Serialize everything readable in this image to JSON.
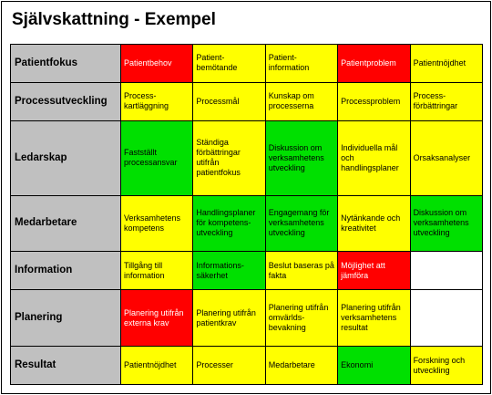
{
  "title": "Självskattning - Exempel",
  "rows": [
    {
      "label": "Patientfokus",
      "cells": [
        {
          "text": "Patientbehov",
          "color": "#ff0000"
        },
        {
          "text": "Patient-\nbemötande",
          "color": "#ffff00"
        },
        {
          "text": "Patient-\ninformation",
          "color": "#ffff00"
        },
        {
          "text": "Patientproblem",
          "color": "#ff0000"
        },
        {
          "text": "Patientnöjdhet",
          "color": "#ffff00"
        }
      ]
    },
    {
      "label": "Processutveckling",
      "cells": [
        {
          "text": "Process-\nkartläggning",
          "color": "#ffff00"
        },
        {
          "text": "Processmål",
          "color": "#ffff00"
        },
        {
          "text": "Kunskap om\nprocesserna",
          "color": "#ffff00"
        },
        {
          "text": "Processproblem",
          "color": "#ffff00"
        },
        {
          "text": "Process-\nförbättringar",
          "color": "#ffff00"
        }
      ]
    },
    {
      "label": "Ledarskap",
      "cells": [
        {
          "text": "Fastställt\nprocessansvar",
          "color": "#00e000"
        },
        {
          "text": "Ständiga\nförbättringar\nutifrån\npatientfokus",
          "color": "#ffff00"
        },
        {
          "text": "Diskussion om\nverksamhetens\nutveckling",
          "color": "#00e000"
        },
        {
          "text": "Individuella mål\noch\nhandlingsplaner",
          "color": "#ffff00"
        },
        {
          "text": "Orsaksanalyser",
          "color": "#ffff00"
        }
      ]
    },
    {
      "label": "Medarbetare",
      "cells": [
        {
          "text": "Verksamhetens\nkompetens",
          "color": "#ffff00"
        },
        {
          "text": "Handlingsplaner\nför kompetens-\nutveckling",
          "color": "#00e000"
        },
        {
          "text": "Engagemang för\nverksamhetens\nutveckling",
          "color": "#00e000"
        },
        {
          "text": "Nytänkande och\nkreativitet",
          "color": "#ffff00"
        },
        {
          "text": "Diskussion om\nverksamhetens\nutveckling",
          "color": "#00e000"
        }
      ]
    },
    {
      "label": "Information",
      "cells": [
        {
          "text": "Tillgång till\ninformation",
          "color": "#ffff00"
        },
        {
          "text": "Informations-\nsäkerhet",
          "color": "#00e000"
        },
        {
          "text": "Beslut baseras på\nfakta",
          "color": "#ffff00"
        },
        {
          "text": "Möjlighet att\njämföra",
          "color": "#ff0000"
        },
        {
          "text": null,
          "color": "#ffffff"
        }
      ]
    },
    {
      "label": "Planering",
      "cells": [
        {
          "text": "Planering utifrån\nexterna krav",
          "color": "#ff0000"
        },
        {
          "text": "Planering utifrån\npatientkrav",
          "color": "#ffff00"
        },
        {
          "text": "Planering utifrån\nomvärlds-\nbevakning",
          "color": "#ffff00"
        },
        {
          "text": "Planering utifrån\nverksamhetens\nresultat",
          "color": "#ffff00"
        },
        {
          "text": null,
          "color": "#ffffff"
        }
      ]
    },
    {
      "label": "Resultat",
      "cells": [
        {
          "text": "Patientnöjdhet",
          "color": "#ffff00"
        },
        {
          "text": "Processer",
          "color": "#ffff00"
        },
        {
          "text": "Medarbetare",
          "color": "#ffff00"
        },
        {
          "text": "Ekonomi",
          "color": "#00e000"
        },
        {
          "text": "Forskning och\nutveckling",
          "color": "#ffff00"
        }
      ]
    }
  ]
}
